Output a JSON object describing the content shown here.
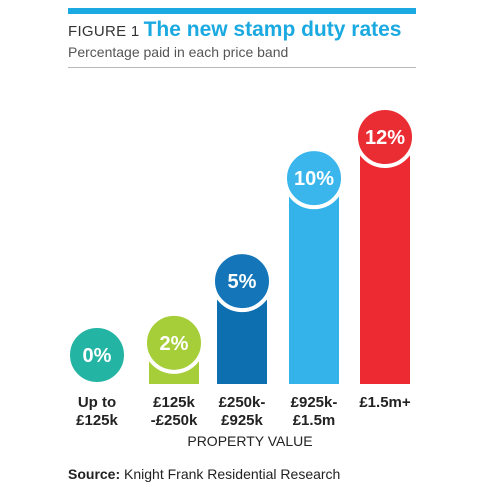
{
  "header": {
    "figure_label": "FIGURE 1",
    "title": "The new stamp duty rates",
    "subtitle": "Percentage paid in each price band"
  },
  "colors": {
    "accent": "#1aa9e0",
    "rule": "#b8b8b8"
  },
  "chart_data": {
    "type": "bar",
    "title": "The new stamp duty rates",
    "subtitle": "Percentage paid in each price band",
    "xlabel": "PROPERTY VALUE",
    "ylabel": "",
    "ylim": [
      0,
      12
    ],
    "grid": false,
    "legend": "none",
    "categories": [
      [
        "Up to",
        "£125k"
      ],
      [
        "£125k",
        "-£250k"
      ],
      [
        "£250k-",
        "£925k"
      ],
      [
        "£925k-",
        "£1.5m"
      ],
      [
        "£1.5m+"
      ]
    ],
    "values": [
      0,
      2,
      5,
      10,
      12
    ],
    "data_labels": [
      "0%",
      "2%",
      "5%",
      "10%",
      "12%"
    ],
    "bar_colors": [
      "#1fb5a3",
      "#a6ce39",
      "#0e6fb0",
      "#34b3ea",
      "#ed2a31"
    ],
    "circle_colors": [
      "#23b4a3",
      "#a6ce39",
      "#1476b9",
      "#3ab6ec",
      "#ea2c33"
    ]
  },
  "source": {
    "label": "Source:",
    "text": "Knight Frank Residential Research"
  }
}
